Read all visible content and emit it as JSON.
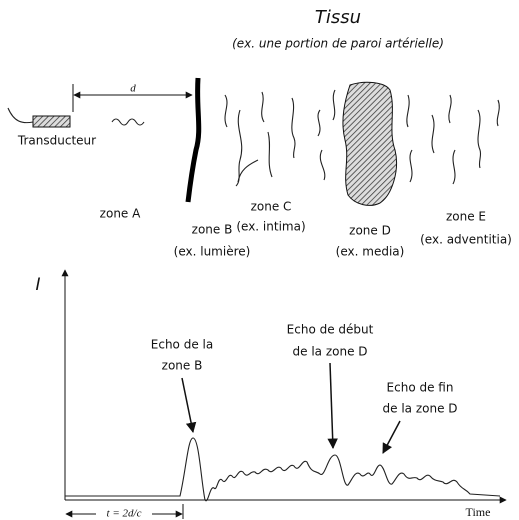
{
  "header": {
    "title": "Tissu",
    "subtitle": "(ex. une portion de paroi artérielle)"
  },
  "transducer": {
    "label": "Transducteur",
    "distance_label": "d"
  },
  "zones": [
    {
      "name": "zone A"
    },
    {
      "name": "zone B",
      "example": "(ex. lumière)"
    },
    {
      "name": "zone C",
      "example": "(ex. intima)"
    },
    {
      "name": "zone D",
      "example": "(ex. media)"
    },
    {
      "name": "zone E",
      "example": "(ex. adventitia)"
    }
  ],
  "plot": {
    "y_label": "I",
    "x_label": "Time",
    "delay_label": "t = 2d/c",
    "annotations": [
      {
        "lines": [
          "Echo de la",
          "zone B"
        ]
      },
      {
        "lines": [
          "Echo de début",
          "de la zone D"
        ]
      },
      {
        "lines": [
          "Echo de fin",
          "de la zone D"
        ]
      }
    ]
  }
}
